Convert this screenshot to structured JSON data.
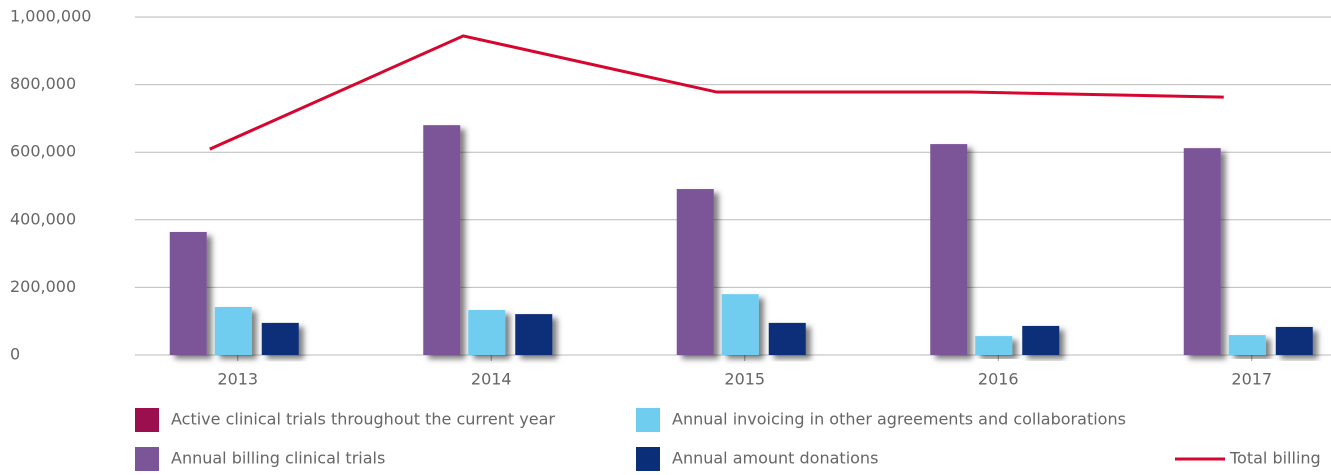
{
  "chart_data": {
    "type": "bar",
    "categories": [
      "2013",
      "2014",
      "2015",
      "2016",
      "2017"
    ],
    "series": [
      {
        "name": "Active clinical trials throughout the current year",
        "color": "#9b0f4f",
        "values": [
          null,
          null,
          null,
          null,
          null
        ]
      },
      {
        "name": "Annual billing clinical trials",
        "color": "#7b5598",
        "values": [
          364000,
          680000,
          491000,
          624000,
          612000
        ]
      },
      {
        "name": "Annual invoicing in other agreements and collaborations",
        "color": "#6fcdf0",
        "values": [
          142000,
          133000,
          180000,
          56000,
          59000
        ]
      },
      {
        "name": "Annual amount donations",
        "color": "#0a2f78",
        "values": [
          95000,
          121000,
          95000,
          86000,
          83000
        ]
      },
      {
        "name": "Total billing",
        "color": "#d6062e",
        "type": "line",
        "values": [
          609000,
          944000,
          778000,
          778000,
          763000
        ]
      }
    ],
    "ylim": [
      0,
      1000000
    ],
    "yticks": [
      0,
      {
        "value": 200000,
        "label": "200,000"
      },
      {
        "value": 400000,
        "label": "400,000"
      },
      {
        "value": 600000,
        "label": "600,000"
      },
      {
        "value": 800000,
        "label": "800,000"
      },
      {
        "value": 1000000,
        "label": "1,000,000"
      }
    ],
    "grid": true,
    "legend": "bottom"
  }
}
